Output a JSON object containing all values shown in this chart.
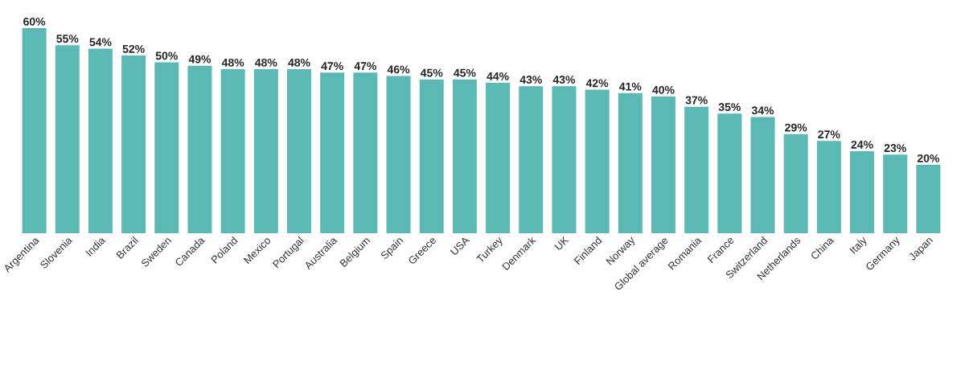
{
  "chart_data": {
    "type": "bar",
    "categories": [
      "Argentina",
      "Slovenia",
      "India",
      "Brazil",
      "Sweden",
      "Canada",
      "Poland",
      "Mexico",
      "Portugal",
      "Australia",
      "Belgium",
      "Spain",
      "Greece",
      "USA",
      "Turkey",
      "Denmark",
      "UK",
      "Finland",
      "Norway",
      "Global average",
      "Romania",
      "France",
      "Switzerland",
      "Netherlands",
      "China",
      "Italy",
      "Germany",
      "Japan"
    ],
    "values": [
      60,
      55,
      54,
      52,
      50,
      49,
      48,
      48,
      48,
      47,
      47,
      46,
      45,
      45,
      44,
      43,
      43,
      42,
      41,
      40,
      37,
      35,
      34,
      29,
      27,
      24,
      23,
      20
    ],
    "value_labels": [
      "60%",
      "55%",
      "54%",
      "52%",
      "50%",
      "49%",
      "48%",
      "48%",
      "48%",
      "47%",
      "47%",
      "46%",
      "45%",
      "45%",
      "44%",
      "43%",
      "43%",
      "42%",
      "41%",
      "40%",
      "37%",
      "35%",
      "34%",
      "29%",
      "27%",
      "24%",
      "23%",
      "20%"
    ],
    "color": "#5bb8b4",
    "ylim": [
      0,
      60
    ]
  }
}
